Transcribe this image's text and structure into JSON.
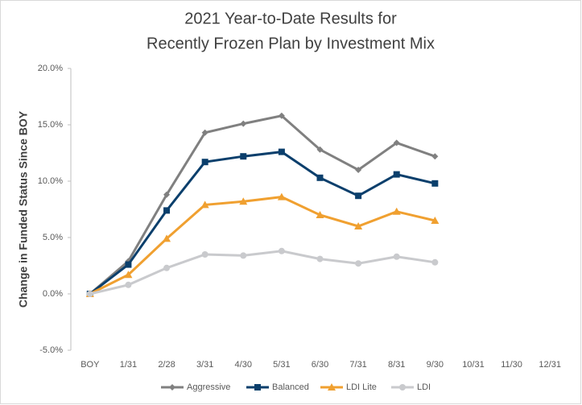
{
  "chart_data": {
    "type": "line",
    "title": [
      "2021 Year-to-Date Results for",
      "Recently Frozen Plan by Investment Mix"
    ],
    "y_label": "Change in Funded Status Since BOY",
    "categories": [
      "BOY",
      "1/31",
      "2/28",
      "3/31",
      "4/30",
      "5/31",
      "6/30",
      "7/31",
      "8/31",
      "9/30",
      "10/31",
      "11/30",
      "12/31"
    ],
    "series": [
      {
        "name": "Aggressive",
        "color": "#808080",
        "marker": "diamond",
        "values": [
          0,
          2.9,
          8.8,
          14.3,
          15.1,
          15.8,
          12.8,
          11.0,
          13.4,
          12.2,
          null,
          null,
          null
        ]
      },
      {
        "name": "Balanced",
        "color": "#0b3f6c",
        "marker": "square",
        "values": [
          0,
          2.6,
          7.4,
          11.7,
          12.2,
          12.6,
          10.3,
          8.7,
          10.6,
          9.8,
          null,
          null,
          null
        ]
      },
      {
        "name": "LDI Lite",
        "color": "#f0a030",
        "marker": "triangle",
        "values": [
          0,
          1.7,
          4.9,
          7.9,
          8.2,
          8.6,
          7.0,
          6.0,
          7.3,
          6.5,
          null,
          null,
          null
        ]
      },
      {
        "name": "LDI",
        "color": "#c9cacd",
        "marker": "circle",
        "values": [
          0,
          0.8,
          2.3,
          3.5,
          3.4,
          3.8,
          3.1,
          2.7,
          3.3,
          2.8,
          null,
          null,
          null
        ]
      }
    ],
    "ylim": [
      -5,
      20
    ],
    "yticks": [
      {
        "value": -5,
        "label": "-5.0%"
      },
      {
        "value": 0,
        "label": "0.0%"
      },
      {
        "value": 5,
        "label": "5.0%"
      },
      {
        "value": 10,
        "label": "10.0%"
      },
      {
        "value": 15,
        "label": "15.0%"
      },
      {
        "value": 20,
        "label": "20.0%"
      }
    ],
    "legend": "bottom"
  }
}
